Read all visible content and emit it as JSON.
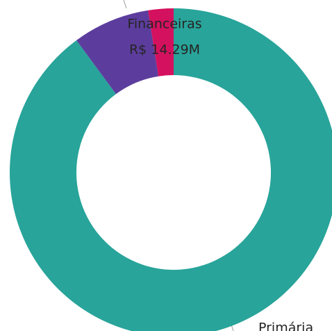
{
  "chart_data": {
    "type": "donut",
    "categories": [
      "Primária",
      "Financeiras",
      null
    ],
    "values": [
      169,
      14.29,
      4.7
    ],
    "value_labels": [
      null,
      "R$ 14.29M",
      null
    ],
    "colors": [
      "#28a49a",
      "#5c3d9e",
      "#d4115f"
    ]
  }
}
